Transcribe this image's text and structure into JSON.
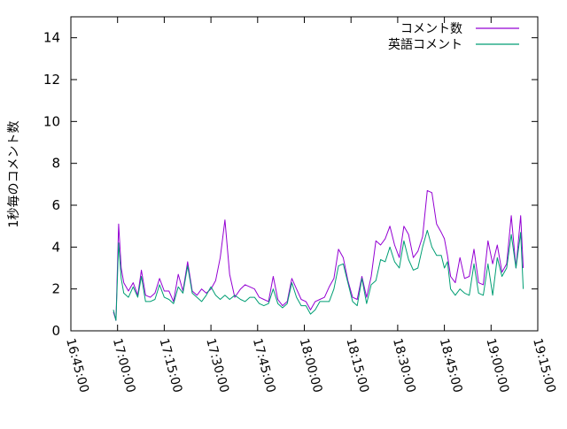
{
  "chart_data": {
    "type": "line",
    "ylabel": "1秒毎のコメント数",
    "xlabel": "",
    "title": "",
    "ylim": [
      0,
      15
    ],
    "yticks": [
      0,
      2,
      4,
      6,
      8,
      10,
      12,
      14
    ],
    "xlim": [
      "16:45:00",
      "19:15:00"
    ],
    "xticks": [
      "16:45:00",
      "17:00:00",
      "17:15:00",
      "17:30:00",
      "17:45:00",
      "18:00:00",
      "18:15:00",
      "18:30:00",
      "18:45:00",
      "19:00:00",
      "19:15:00"
    ],
    "grid": false,
    "legend_position": "top-right",
    "series": [
      {
        "name": "コメント数",
        "color": "#9400d3",
        "x": [
          "16:58:40",
          "16:59:30",
          "17:00:20",
          "17:01:10",
          "17:02:00",
          "17:03:30",
          "17:05:00",
          "17:06:30",
          "17:07:40",
          "17:09:00",
          "17:10:30",
          "17:12:00",
          "17:13:30",
          "17:15:00",
          "17:16:30",
          "17:18:00",
          "17:19:30",
          "17:21:00",
          "17:22:30",
          "17:24:00",
          "17:25:30",
          "17:27:00",
          "17:28:30",
          "17:30:00",
          "17:31:30",
          "17:33:00",
          "17:34:30",
          "17:36:00",
          "17:37:40",
          "17:39:30",
          "17:41:00",
          "17:42:30",
          "17:44:00",
          "17:45:30",
          "17:47:00",
          "17:48:30",
          "17:50:00",
          "17:51:30",
          "17:53:00",
          "17:54:30",
          "17:56:00",
          "17:57:30",
          "17:59:00",
          "18:00:30",
          "18:02:00",
          "18:03:30",
          "18:05:00",
          "18:06:30",
          "18:08:00",
          "18:09:30",
          "18:11:00",
          "18:12:30",
          "18:14:00",
          "18:15:30",
          "18:17:00",
          "18:18:30",
          "18:20:00",
          "18:21:30",
          "18:23:00",
          "18:24:30",
          "18:26:00",
          "18:27:30",
          "18:29:00",
          "18:30:30",
          "18:32:00",
          "18:33:30",
          "18:35:00",
          "18:36:30",
          "18:38:00",
          "18:39:30",
          "18:41:00",
          "18:42:30",
          "18:44:00",
          "18:45:00",
          "18:46:00",
          "18:47:00",
          "18:48:30",
          "18:50:00",
          "18:51:30",
          "18:53:00",
          "18:54:30",
          "18:56:00",
          "18:57:30",
          "18:59:00",
          "19:00:30",
          "19:02:00",
          "19:03:30",
          "19:05:00",
          "19:06:30",
          "19:08:00",
          "19:09:30",
          "19:10:20"
        ],
        "values": [
          0.9,
          0.5,
          5.1,
          3.0,
          2.3,
          1.9,
          2.3,
          1.7,
          2.9,
          1.7,
          1.6,
          1.8,
          2.5,
          1.9,
          1.9,
          1.4,
          2.7,
          1.9,
          3.3,
          1.9,
          1.7,
          2.0,
          1.8,
          2.0,
          2.4,
          3.5,
          5.3,
          2.7,
          1.6,
          2.0,
          2.2,
          2.1,
          2.0,
          1.6,
          1.5,
          1.4,
          2.6,
          1.5,
          1.2,
          1.4,
          2.5,
          2.0,
          1.5,
          1.4,
          1.0,
          1.4,
          1.5,
          1.6,
          2.1,
          2.5,
          3.9,
          3.5,
          2.4,
          1.6,
          1.5,
          2.6,
          1.6,
          2.6,
          4.3,
          4.1,
          4.4,
          5.0,
          4.1,
          3.5,
          5.0,
          4.6,
          3.5,
          3.8,
          4.5,
          6.7,
          6.6,
          5.1,
          4.7,
          4.4,
          3.6,
          2.6,
          2.3,
          3.5,
          2.5,
          2.6,
          3.9,
          2.3,
          2.2,
          4.3,
          3.2,
          4.1,
          2.8,
          3.2,
          5.5,
          3.0,
          5.5,
          3.0
        ]
      },
      {
        "name": "英語コメント",
        "color": "#009e73",
        "x": [
          "16:58:40",
          "16:59:30",
          "17:00:20",
          "17:01:10",
          "17:02:00",
          "17:03:30",
          "17:05:00",
          "17:06:30",
          "17:07:40",
          "17:09:00",
          "17:10:30",
          "17:12:00",
          "17:13:30",
          "17:15:00",
          "17:16:30",
          "17:18:00",
          "17:19:30",
          "17:21:00",
          "17:22:30",
          "17:24:00",
          "17:25:30",
          "17:27:00",
          "17:28:30",
          "17:30:00",
          "17:31:30",
          "17:33:00",
          "17:34:30",
          "17:36:00",
          "17:37:40",
          "17:39:30",
          "17:41:00",
          "17:42:30",
          "17:44:00",
          "17:45:30",
          "17:47:00",
          "17:48:30",
          "17:50:00",
          "17:51:30",
          "17:53:00",
          "17:54:30",
          "17:56:00",
          "17:57:30",
          "17:59:00",
          "18:00:30",
          "18:02:00",
          "18:03:30",
          "18:05:00",
          "18:06:30",
          "18:08:00",
          "18:09:30",
          "18:11:00",
          "18:12:30",
          "18:14:00",
          "18:15:30",
          "18:17:00",
          "18:18:30",
          "18:20:00",
          "18:21:30",
          "18:23:00",
          "18:24:30",
          "18:26:00",
          "18:27:30",
          "18:29:00",
          "18:30:30",
          "18:32:00",
          "18:33:30",
          "18:35:00",
          "18:36:30",
          "18:38:00",
          "18:39:30",
          "18:41:00",
          "18:42:30",
          "18:44:00",
          "18:45:00",
          "18:46:00",
          "18:47:00",
          "18:48:30",
          "18:50:00",
          "18:51:30",
          "18:53:00",
          "18:54:30",
          "18:56:00",
          "18:57:30",
          "18:59:00",
          "19:00:30",
          "19:02:00",
          "19:03:30",
          "19:05:00",
          "19:06:30",
          "19:08:00",
          "19:09:30",
          "19:10:20"
        ],
        "values": [
          1.0,
          0.5,
          4.2,
          2.5,
          1.8,
          1.6,
          2.1,
          1.6,
          2.6,
          1.4,
          1.4,
          1.5,
          2.2,
          1.6,
          1.5,
          1.3,
          2.1,
          1.8,
          3.1,
          1.8,
          1.6,
          1.4,
          1.7,
          2.1,
          1.7,
          1.5,
          1.7,
          1.5,
          1.7,
          1.5,
          1.4,
          1.6,
          1.6,
          1.3,
          1.2,
          1.3,
          2.0,
          1.3,
          1.1,
          1.3,
          2.3,
          1.6,
          1.2,
          1.2,
          0.8,
          1.0,
          1.4,
          1.4,
          1.4,
          2.0,
          3.1,
          3.2,
          2.3,
          1.4,
          1.2,
          2.5,
          1.3,
          2.2,
          2.4,
          3.4,
          3.3,
          4.0,
          3.3,
          3.0,
          4.3,
          3.4,
          2.9,
          3.0,
          4.0,
          4.8,
          4.0,
          3.6,
          3.6,
          3.0,
          3.3,
          2.0,
          1.7,
          2.0,
          1.8,
          1.7,
          3.2,
          1.8,
          1.7,
          3.2,
          1.7,
          3.5,
          2.6,
          3.0,
          4.6,
          3.0,
          4.7,
          2.0
        ]
      }
    ]
  }
}
